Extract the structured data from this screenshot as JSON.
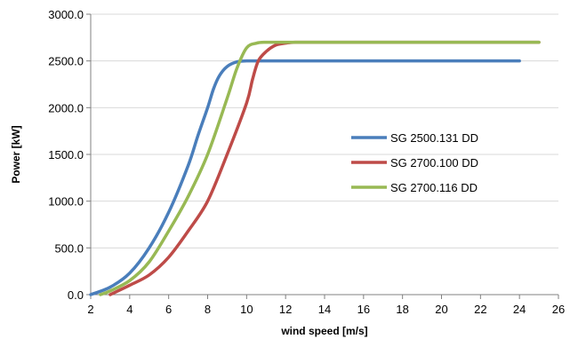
{
  "chart_data": {
    "type": "line",
    "title": "",
    "xlabel": "wind speed [m/s]",
    "ylabel": "Power [kW]",
    "xlim": [
      2,
      26
    ],
    "ylim": [
      0,
      3000
    ],
    "x_ticks": [
      "2",
      "4",
      "6",
      "8",
      "10",
      "12",
      "14",
      "16",
      "18",
      "20",
      "22",
      "24",
      "26"
    ],
    "y_ticks": [
      "0.0",
      "500.0",
      "1000.0",
      "1500.0",
      "2000.0",
      "2500.0",
      "3000.0"
    ],
    "grid": "horizontal",
    "legend_position": "center-right",
    "series": [
      {
        "name": "SG 2500.131 DD",
        "color": "#4a7ebb",
        "x": [
          2,
          3,
          4,
          5,
          6,
          7,
          7.5,
          8,
          8.3,
          8.6,
          9,
          9.5,
          10,
          11,
          12,
          14,
          16,
          18,
          20,
          22,
          24
        ],
        "y": [
          0,
          80,
          230,
          500,
          880,
          1380,
          1700,
          2000,
          2200,
          2340,
          2440,
          2490,
          2500,
          2500,
          2500,
          2500,
          2500,
          2500,
          2500,
          2500,
          2500
        ]
      },
      {
        "name": "SG 2700.100 DD",
        "color": "#be4b48",
        "x": [
          3,
          4,
          5,
          6,
          7,
          8,
          9,
          10,
          10.3,
          10.6,
          11,
          11.5,
          12,
          12.5,
          14,
          16,
          18,
          20,
          22,
          24,
          25
        ],
        "y": [
          0,
          100,
          210,
          400,
          680,
          1000,
          1500,
          2050,
          2300,
          2500,
          2600,
          2670,
          2690,
          2700,
          2700,
          2700,
          2700,
          2700,
          2700,
          2700,
          2700
        ]
      },
      {
        "name": "SG 2700.116 DD",
        "color": "#98b954",
        "x": [
          2.5,
          3,
          4,
          5,
          6,
          7,
          8,
          9,
          9.5,
          10,
          10.5,
          11,
          12,
          14,
          16,
          18,
          20,
          22,
          24,
          25
        ],
        "y": [
          0,
          40,
          150,
          350,
          680,
          1050,
          1500,
          2100,
          2420,
          2640,
          2690,
          2700,
          2700,
          2700,
          2700,
          2700,
          2700,
          2700,
          2700,
          2700
        ]
      }
    ]
  }
}
